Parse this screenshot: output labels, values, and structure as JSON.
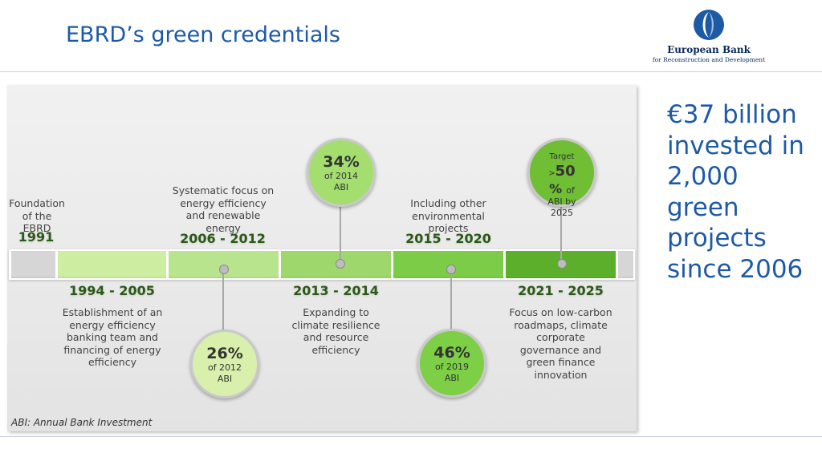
{
  "header": {
    "title": "EBRD’s green credentials",
    "logo_line1": "European Bank",
    "logo_line2": "for Reconstruction and Development"
  },
  "timeline": {
    "segment_colors": [
      "#d6d6d6",
      "#cdeea0",
      "#b9e48e",
      "#9ed86c",
      "#7ccc48",
      "#5caf2a",
      "#d6d6d6"
    ],
    "items": [
      {
        "year": "1991",
        "desc": [
          "Foundation",
          "of the",
          "EBRD"
        ]
      },
      {
        "year": "1994 - 2005",
        "desc": [
          "Establishment of an",
          "energy efficiency",
          "banking team and",
          "financing of energy",
          "efficiency"
        ]
      },
      {
        "year": "2006 - 2012",
        "desc": [
          "Systematic focus on",
          "energy efficiency",
          "and renewable",
          "energy"
        ]
      },
      {
        "year": "2013 - 2014",
        "desc": [
          "Expanding to",
          "climate resilience",
          "and resource",
          "efficiency"
        ]
      },
      {
        "year": "2015 - 2020",
        "desc": [
          "Including other",
          "environmental",
          "projects"
        ]
      },
      {
        "year": "2021 - 2025",
        "desc": [
          "Focus on low-carbon",
          "roadmaps, climate",
          "corporate",
          "governance and",
          "green finance",
          "innovation"
        ]
      }
    ],
    "circles": [
      {
        "big": "26%",
        "small": [
          "of 2012",
          "ABI"
        ]
      },
      {
        "big": "34%",
        "small": [
          "of 2014",
          "ABI"
        ]
      },
      {
        "big": "46%",
        "small": [
          "of 2019",
          "ABI"
        ]
      },
      {
        "pre": "Target",
        "gt": ">",
        "big": "50",
        "pct": "%",
        "of": "of",
        "small": [
          "ABI by",
          "2025"
        ]
      }
    ]
  },
  "side_text": [
    "€37 billion",
    "invested in",
    "2,000",
    "green",
    "projects",
    "since 2006"
  ],
  "footnote": "ABI: Annual Bank Investment"
}
